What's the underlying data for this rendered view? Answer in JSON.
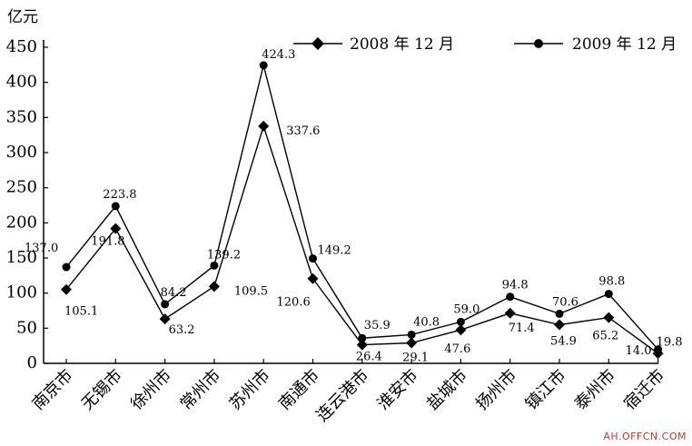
{
  "chart_data": {
    "type": "line",
    "y_unit": "亿元",
    "categories": [
      "南京市",
      "无锡市",
      "徐州市",
      "常州市",
      "苏州市",
      "南通市",
      "连云港市",
      "淮安市",
      "盐城市",
      "扬州市",
      "镇江市",
      "泰州市",
      "宿迁市"
    ],
    "series": [
      {
        "name": "2008 年 12 月",
        "marker": "diamond",
        "values": [
          105.1,
          191.8,
          63.2,
          109.5,
          337.6,
          120.6,
          26.4,
          29.1,
          47.6,
          71.4,
          54.9,
          65.2,
          14.0
        ],
        "labels": [
          "105.1",
          "191.8",
          "63.2",
          "109.5",
          "337.6",
          "120.6",
          "26.4",
          "29.1",
          "47.6",
          "71.4",
          "54.9",
          "65.2",
          "14.0"
        ]
      },
      {
        "name": "2009 年 12 月",
        "marker": "circle",
        "values": [
          137.0,
          223.8,
          84.2,
          139.2,
          424.3,
          149.2,
          35.9,
          40.8,
          59.0,
          94.8,
          70.6,
          98.8,
          19.8
        ],
        "labels": [
          "137.0",
          "223.8",
          "84.2",
          "139.2",
          "424.3",
          "149.2",
          "35.9",
          "40.8",
          "59.0",
          "94.8",
          "70.6",
          "98.8",
          "19.8"
        ]
      }
    ],
    "yticks": [
      "0",
      "50",
      "100",
      "150",
      "200",
      "250",
      "300",
      "350",
      "400",
      "450"
    ],
    "ylim": [
      0,
      450
    ],
    "legend_position": "top-right",
    "grid": false
  },
  "watermark": "AH.OFFCN.COM",
  "colors": {
    "line": "#000000",
    "watermark": "#c0392b"
  }
}
